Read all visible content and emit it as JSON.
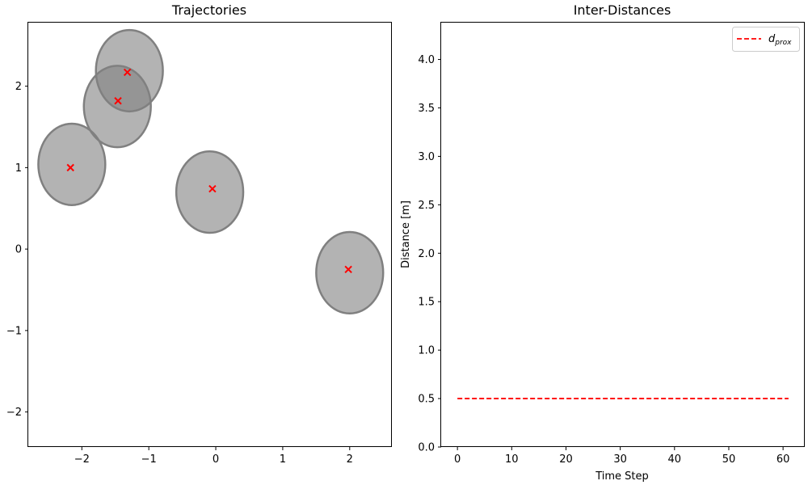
{
  "chart_data": [
    {
      "type": "scatter",
      "title": "Trajectories",
      "xlabel": "",
      "ylabel": "",
      "xlim": [
        -2.8,
        2.63
      ],
      "ylim": [
        -2.43,
        2.78
      ],
      "xticks": [
        -2,
        -1,
        0,
        1,
        2
      ],
      "yticks": [
        -2,
        -1,
        0,
        1,
        2
      ],
      "grid": false,
      "marker_color": "#ff0000",
      "disk_color": "#808080",
      "agents": [
        {
          "center": [
            -2.15,
            1.04
          ],
          "marker": [
            -2.17,
            1.0
          ]
        },
        {
          "center": [
            -1.47,
            1.75
          ],
          "marker": [
            -1.46,
            1.82
          ]
        },
        {
          "center": [
            -1.29,
            2.19
          ],
          "marker": [
            -1.32,
            2.17
          ]
        },
        {
          "center": [
            -0.09,
            0.7
          ],
          "marker": [
            -0.05,
            0.74
          ]
        },
        {
          "center": [
            2.0,
            -0.29
          ],
          "marker": [
            1.98,
            -0.25
          ]
        }
      ],
      "disk_radius_x": 0.5,
      "disk_radius_y": 0.5
    },
    {
      "type": "line",
      "title": "Inter-Distances",
      "xlabel": "Time Step",
      "ylabel": "Distance [m]",
      "xlim": [
        -3,
        64
      ],
      "ylim": [
        0.0,
        4.38
      ],
      "xticks": [
        0,
        10,
        20,
        30,
        40,
        50,
        60
      ],
      "yticks": [
        "0.0",
        "0.5",
        "1.0",
        "1.5",
        "2.0",
        "2.5",
        "3.0",
        "3.5",
        "4.0"
      ],
      "grid": false,
      "legend_position": "top-right",
      "series": [
        {
          "name": "d",
          "name_subscript": "prox",
          "color": "#ff0000",
          "style": "dashed",
          "x": [
            0,
            61
          ],
          "y": [
            0.5,
            0.5
          ]
        }
      ]
    }
  ]
}
